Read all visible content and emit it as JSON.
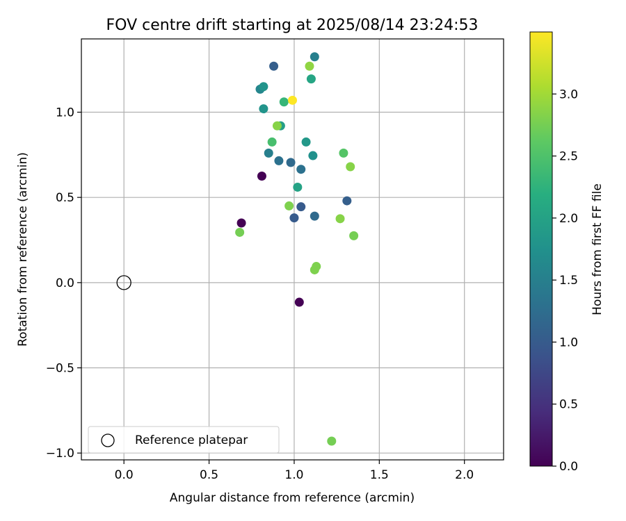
{
  "chart_data": {
    "type": "scatter",
    "title": "FOV centre drift starting at 2025/08/14 23:24:53",
    "xlabel": "Angular distance from reference (arcmin)",
    "ylabel": "Rotation from reference (arcmin)",
    "xlim": [
      -0.25,
      2.23
    ],
    "ylim": [
      -1.04,
      1.43
    ],
    "xticks": [
      0.0,
      0.5,
      1.0,
      1.5,
      2.0
    ],
    "xtick_labels": [
      "0.0",
      "0.5",
      "1.0",
      "1.5",
      "2.0"
    ],
    "yticks": [
      -1.0,
      -0.5,
      0.0,
      0.5,
      1.0
    ],
    "ytick_labels": [
      "−1.0",
      "−0.5",
      "0.0",
      "0.5",
      "1.0"
    ],
    "grid": true,
    "legend": {
      "location": "lower-left",
      "entries": [
        "Reference platepar"
      ]
    },
    "reference_point": {
      "x": 0.0,
      "y": 0.0,
      "marker": "open-circle"
    },
    "colorbar": {
      "label": "Hours from first FF file",
      "colormap": "viridis",
      "range": [
        0.0,
        3.5
      ],
      "ticks": [
        0.0,
        0.5,
        1.0,
        1.5,
        2.0,
        2.5,
        3.0
      ],
      "tick_labels": [
        "0.0",
        "0.5",
        "1.0",
        "1.5",
        "2.0",
        "2.5",
        "3.0"
      ]
    },
    "points": [
      {
        "x": 0.81,
        "y": 0.625,
        "hours": 0.0
      },
      {
        "x": 0.69,
        "y": 0.35,
        "hours": 0.0
      },
      {
        "x": 1.03,
        "y": -0.115,
        "hours": 0.0
      },
      {
        "x": 1.0,
        "y": 0.38,
        "hours": 1.0
      },
      {
        "x": 1.04,
        "y": 0.445,
        "hours": 1.0
      },
      {
        "x": 1.12,
        "y": 0.39,
        "hours": 1.2
      },
      {
        "x": 1.31,
        "y": 0.48,
        "hours": 1.05
      },
      {
        "x": 0.88,
        "y": 1.27,
        "hours": 1.05
      },
      {
        "x": 0.98,
        "y": 0.705,
        "hours": 1.2
      },
      {
        "x": 1.04,
        "y": 0.665,
        "hours": 1.3
      },
      {
        "x": 0.91,
        "y": 0.715,
        "hours": 1.3
      },
      {
        "x": 0.85,
        "y": 0.76,
        "hours": 1.5
      },
      {
        "x": 1.12,
        "y": 1.325,
        "hours": 1.5
      },
      {
        "x": 0.8,
        "y": 1.135,
        "hours": 1.6
      },
      {
        "x": 0.82,
        "y": 1.15,
        "hours": 1.8
      },
      {
        "x": 0.82,
        "y": 1.02,
        "hours": 1.8
      },
      {
        "x": 1.11,
        "y": 0.745,
        "hours": 1.75
      },
      {
        "x": 1.07,
        "y": 0.825,
        "hours": 1.85
      },
      {
        "x": 0.92,
        "y": 0.92,
        "hours": 1.95
      },
      {
        "x": 1.02,
        "y": 0.56,
        "hours": 2.0
      },
      {
        "x": 1.1,
        "y": 1.195,
        "hours": 2.05
      },
      {
        "x": 0.94,
        "y": 1.06,
        "hours": 2.3
      },
      {
        "x": 0.87,
        "y": 0.825,
        "hours": 2.45
      },
      {
        "x": 1.29,
        "y": 0.76,
        "hours": 2.55
      },
      {
        "x": 1.33,
        "y": 0.68,
        "hours": 2.85
      },
      {
        "x": 1.27,
        "y": 0.375,
        "hours": 2.85
      },
      {
        "x": 1.35,
        "y": 0.275,
        "hours": 2.75
      },
      {
        "x": 0.68,
        "y": 0.295,
        "hours": 2.75
      },
      {
        "x": 0.97,
        "y": 0.45,
        "hours": 2.8
      },
      {
        "x": 0.9,
        "y": 0.92,
        "hours": 2.85
      },
      {
        "x": 1.09,
        "y": 1.27,
        "hours": 2.9
      },
      {
        "x": 1.13,
        "y": 0.095,
        "hours": 2.8
      },
      {
        "x": 1.12,
        "y": 0.075,
        "hours": 2.8
      },
      {
        "x": 1.22,
        "y": -0.93,
        "hours": 2.75
      },
      {
        "x": 0.99,
        "y": 1.07,
        "hours": 3.5
      }
    ]
  }
}
